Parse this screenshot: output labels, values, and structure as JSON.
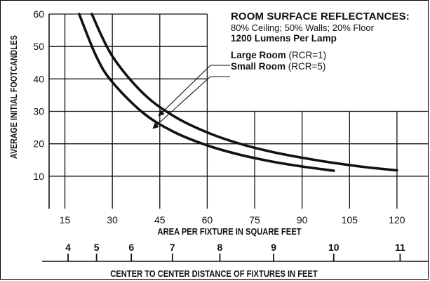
{
  "chart_data": {
    "type": "line",
    "ylabel": "AVERAGE INITIAL FOOTCANDLES",
    "xlabel": "AREA PER FIXTURE IN SQUARE FEET",
    "secondary_xlabel": "CENTER TO CENTER DISTANCE OF FIXTURES IN FEET",
    "xlim": [
      10,
      130
    ],
    "ylim": [
      0,
      60
    ],
    "x_ticks": [
      "15",
      "30",
      "45",
      "60",
      "75",
      "90",
      "105",
      "120"
    ],
    "y_ticks": [
      "10",
      "20",
      "30",
      "40",
      "50",
      "60"
    ],
    "secondary_ticks": [
      {
        "label": "4",
        "area": 16
      },
      {
        "label": "5",
        "area": 25
      },
      {
        "label": "6",
        "area": 36
      },
      {
        "label": "7",
        "area": 49
      },
      {
        "label": "8",
        "area": 64
      },
      {
        "label": "9",
        "area": 81
      },
      {
        "label": "10",
        "area": 100
      },
      {
        "label": "11",
        "area": 121
      }
    ],
    "grid": true,
    "series": [
      {
        "name": "Large Room (RCR=1)",
        "x": [
          23.5,
          30,
          40,
          50,
          60,
          70,
          80,
          90,
          100,
          110,
          120
        ],
        "y": [
          60,
          47,
          35.3,
          28.2,
          23.5,
          20.1,
          17.6,
          15.7,
          14.1,
          12.8,
          11.8
        ]
      },
      {
        "name": "Small Room (RCR=5)",
        "x": [
          19.5,
          25,
          30,
          40,
          50,
          60,
          70,
          80,
          90,
          100
        ],
        "y": [
          60,
          46.8,
          39,
          29.3,
          23.4,
          19.5,
          16.7,
          14.6,
          13,
          11.7
        ]
      }
    ]
  },
  "annotation": {
    "heading": "ROOM SURFACE REFLECTANCES:",
    "reflectances": "80% Ceiling; 50% Walls; 20% Floor",
    "lumens": "1200 Lumens Per Lamp",
    "large_room_name": "Large Room",
    "large_room_rcr": "(RCR=1)",
    "small_room_name": "Small Room",
    "small_room_rcr": "(RCR=5)"
  },
  "colors": {
    "ink": "#111111",
    "background": "#ffffff"
  }
}
